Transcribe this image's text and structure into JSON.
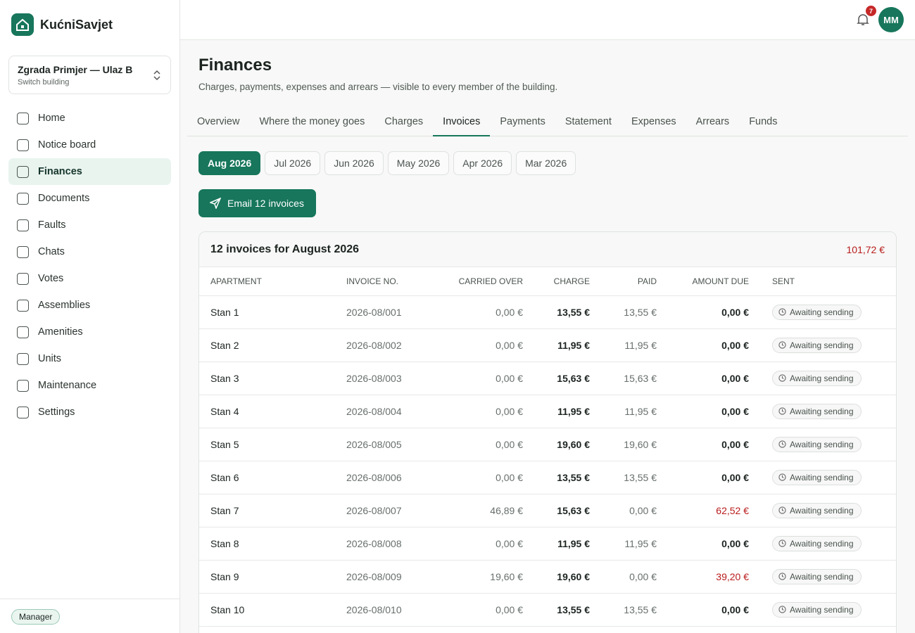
{
  "sidebar": {
    "brand": "KućniSavjet",
    "building": {
      "name": "Zgrada Primjer — Ulaz B",
      "hint": "Switch building"
    },
    "nav": {
      "items": [
        "Home",
        "Notice board",
        "Finances",
        "Documents",
        "Faults",
        "Chats",
        "Votes",
        "Assemblies",
        "Amenities",
        "Units",
        "Maintenance",
        "Settings"
      ],
      "active": 2
    },
    "role": "Manager"
  },
  "topbar": {
    "notifications": 7,
    "avatar": "MM"
  },
  "header": {
    "title": "Finances",
    "subtitle": "Charges, payments, expenses and arrears — visible to every member of the building."
  },
  "tabs": {
    "items": [
      "Overview",
      "Where the money goes",
      "Charges",
      "Invoices",
      "Payments",
      "Statement",
      "Expenses",
      "Arrears",
      "Funds"
    ],
    "active": 3
  },
  "months": {
    "items": [
      "Aug 2026",
      "Jul 2026",
      "Jun 2026",
      "May 2026",
      "Apr 2026",
      "Mar 2026"
    ],
    "active": 0
  },
  "action": "Email 12 invoices",
  "table": {
    "title": "12 invoices for August 2026",
    "total": "101,72 €",
    "columns": [
      "APARTMENT",
      "INVOICE NO.",
      "CARRIED OVER",
      "CHARGE",
      "PAID",
      "AMOUNT DUE",
      "SENT"
    ],
    "rows": [
      [
        "Stan 1",
        "2026-08/001",
        "0,00 €",
        "13,55 €",
        "13,55 €",
        "0,00 €",
        "Awaiting sending"
      ],
      [
        "Stan 2",
        "2026-08/002",
        "0,00 €",
        "11,95 €",
        "11,95 €",
        "0,00 €",
        "Awaiting sending"
      ],
      [
        "Stan 3",
        "2026-08/003",
        "0,00 €",
        "15,63 €",
        "15,63 €",
        "0,00 €",
        "Awaiting sending"
      ],
      [
        "Stan 4",
        "2026-08/004",
        "0,00 €",
        "11,95 €",
        "11,95 €",
        "0,00 €",
        "Awaiting sending"
      ],
      [
        "Stan 5",
        "2026-08/005",
        "0,00 €",
        "19,60 €",
        "19,60 €",
        "0,00 €",
        "Awaiting sending"
      ],
      [
        "Stan 6",
        "2026-08/006",
        "0,00 €",
        "13,55 €",
        "13,55 €",
        "0,00 €",
        "Awaiting sending"
      ],
      [
        "Stan 7",
        "2026-08/007",
        "46,89 €",
        "15,63 €",
        "0,00 €",
        "62,52 €",
        "Awaiting sending"
      ],
      [
        "Stan 8",
        "2026-08/008",
        "0,00 €",
        "11,95 €",
        "11,95 €",
        "0,00 €",
        "Awaiting sending"
      ],
      [
        "Stan 9",
        "2026-08/009",
        "19,60 €",
        "19,60 €",
        "0,00 €",
        "39,20 €",
        "Awaiting sending"
      ],
      [
        "Stan 10",
        "2026-08/010",
        "0,00 €",
        "13,55 €",
        "13,55 €",
        "0,00 €",
        "Awaiting sending"
      ]
    ],
    "due_highlight_rows": [
      6,
      8
    ]
  }
}
